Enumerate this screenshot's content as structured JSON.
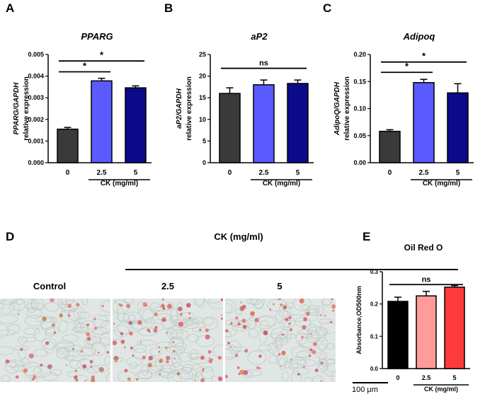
{
  "panels": {
    "A": "A",
    "B": "B",
    "C": "C",
    "D": "D",
    "E": "E"
  },
  "chart_data": [
    {
      "id": "A",
      "type": "bar",
      "title": "PPARG",
      "ylabel_italic": "PPARG/GAPDH",
      "ylabel": "relative expression",
      "categories": [
        "0",
        "2.5",
        "5"
      ],
      "values": [
        0.00155,
        0.00378,
        0.00346
      ],
      "errors": [
        8e-05,
        0.00012,
        9e-05
      ],
      "colors": [
        "#3a3a3a",
        "#5a5aff",
        "#0a0a8a"
      ],
      "ylim": [
        0,
        0.005
      ],
      "yticks": [
        0,
        0.001,
        0.002,
        0.003,
        0.004,
        0.005
      ],
      "ytick_labels": [
        "0.000",
        "0.001",
        "0.002",
        "0.003",
        "0.004",
        "0.005"
      ],
      "xgroup_label": "CK (mg/ml)",
      "annotations": [
        {
          "label": "*",
          "from": 0,
          "to": 1,
          "y": 0.0042
        },
        {
          "label": "*",
          "from": 0,
          "to": 2,
          "y": 0.0047
        }
      ]
    },
    {
      "id": "B",
      "type": "bar",
      "title": "aP2",
      "ylabel_italic": "aP2/GAPDH",
      "ylabel": "relative expression",
      "categories": [
        "0",
        "2.5",
        "5"
      ],
      "values": [
        16.0,
        18.0,
        18.3
      ],
      "errors": [
        1.3,
        1.1,
        0.8
      ],
      "colors": [
        "#3a3a3a",
        "#5a5aff",
        "#0a0a8a"
      ],
      "ylim": [
        0,
        25
      ],
      "yticks": [
        0,
        5,
        10,
        15,
        20,
        25
      ],
      "ytick_labels": [
        "0",
        "5",
        "10",
        "15",
        "20",
        "25"
      ],
      "xgroup_label": "CK (mg/ml)",
      "annotations": [
        {
          "label": "ns",
          "from": 0,
          "to": 2,
          "y": 21.8
        }
      ]
    },
    {
      "id": "C",
      "type": "bar",
      "title": "Adipoq",
      "ylabel_italic": "AdipoQ/GAPDH",
      "ylabel": "relative expression",
      "categories": [
        "0",
        "2.5",
        "5"
      ],
      "values": [
        0.058,
        0.148,
        0.129
      ],
      "errors": [
        0.003,
        0.006,
        0.017
      ],
      "colors": [
        "#3a3a3a",
        "#5a5aff",
        "#0a0a8a"
      ],
      "ylim": [
        0,
        0.2
      ],
      "yticks": [
        0,
        0.05,
        0.1,
        0.15,
        0.2
      ],
      "ytick_labels": [
        "0.00",
        "0.05",
        "0.10",
        "0.15",
        "0.20"
      ],
      "xgroup_label": "CK (mg/ml)",
      "annotations": [
        {
          "label": "*",
          "from": 0,
          "to": 1,
          "y": 0.167
        },
        {
          "label": "*",
          "from": 0,
          "to": 2,
          "y": 0.186
        }
      ]
    },
    {
      "id": "E",
      "type": "bar",
      "title": "Oil Red O",
      "ylabel_italic": "",
      "ylabel": "Absorbance,OD500nm",
      "categories": [
        "0",
        "2.5",
        "5"
      ],
      "values": [
        0.208,
        0.225,
        0.252
      ],
      "errors": [
        0.013,
        0.014,
        0.005
      ],
      "colors": [
        "#000000",
        "#ff9b9b",
        "#ff3a3a"
      ],
      "ylim": [
        0,
        0.3
      ],
      "yticks": [
        0,
        0.1,
        0.2,
        0.3
      ],
      "ytick_labels": [
        "0.0",
        "0.1",
        "0.2",
        "0.3"
      ],
      "xgroup_label": "CK (mg/ml)",
      "annotations": [
        {
          "label": "ns",
          "from": 0,
          "to": 2,
          "y": 0.26
        }
      ]
    }
  ],
  "micrographs": {
    "group_label": "CK (mg/ml)",
    "labels": [
      "Control",
      "2.5",
      "5"
    ],
    "scale_bar": "100 μm"
  }
}
